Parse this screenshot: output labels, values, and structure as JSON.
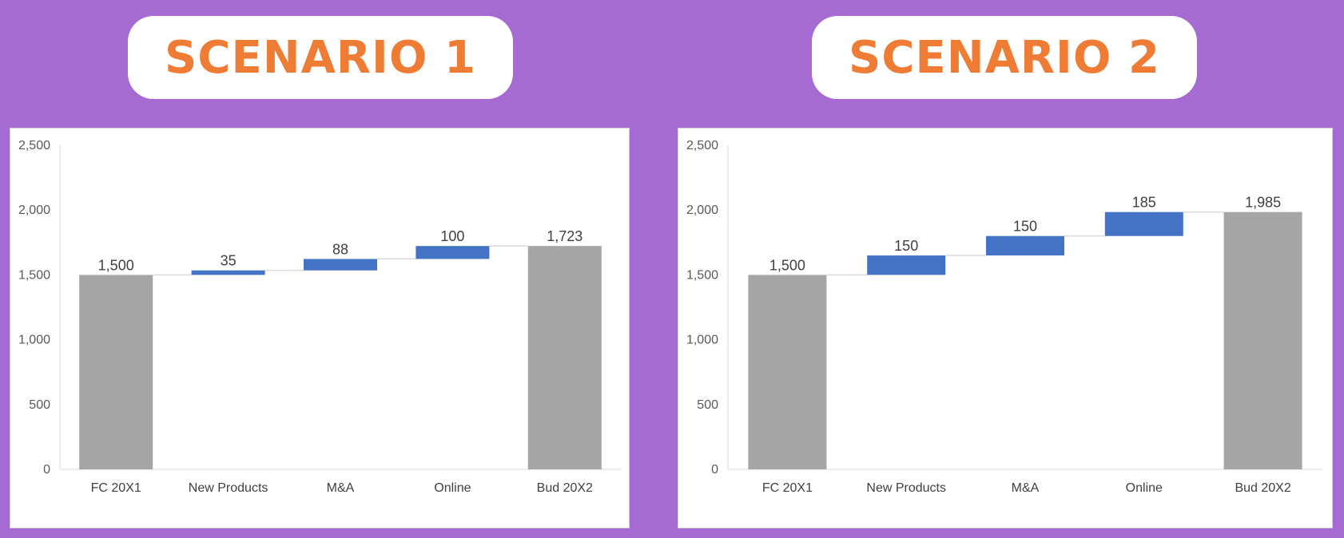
{
  "colors": {
    "total": "#a5a5a5",
    "increase": "#4472c4",
    "connector": "#d9d9d9",
    "axis": "#d9d9d9"
  },
  "scenarios": [
    {
      "title": "SCENARIO 1"
    },
    {
      "title": "SCENARIO 2"
    }
  ],
  "chart_data": [
    {
      "type": "waterfall",
      "title": "",
      "categories": [
        "FC 20X1",
        "New Products",
        "M&A",
        "Online",
        "Bud 20X2"
      ],
      "values": [
        1500,
        35,
        88,
        100,
        1723
      ],
      "data_labels": [
        "1,500",
        "35",
        "88",
        "100",
        "1,723"
      ],
      "kinds": [
        "total",
        "increase",
        "increase",
        "increase",
        "total"
      ],
      "ylim": [
        0,
        2500
      ],
      "yticks": [
        0,
        500,
        1000,
        1500,
        2000,
        2500
      ],
      "ytick_labels": [
        "0",
        "500",
        "1,000",
        "1,500",
        "2,000",
        "2,500"
      ],
      "legend": "none",
      "grid": false
    },
    {
      "type": "waterfall",
      "title": "",
      "categories": [
        "FC 20X1",
        "New Products",
        "M&A",
        "Online",
        "Bud 20X2"
      ],
      "values": [
        1500,
        150,
        150,
        185,
        1985
      ],
      "data_labels": [
        "1,500",
        "150",
        "150",
        "185",
        "1,985"
      ],
      "kinds": [
        "total",
        "increase",
        "increase",
        "increase",
        "total"
      ],
      "ylim": [
        0,
        2500
      ],
      "yticks": [
        0,
        500,
        1000,
        1500,
        2000,
        2500
      ],
      "ytick_labels": [
        "0",
        "500",
        "1,000",
        "1,500",
        "2,000",
        "2,500"
      ],
      "legend": "none",
      "grid": false
    }
  ]
}
